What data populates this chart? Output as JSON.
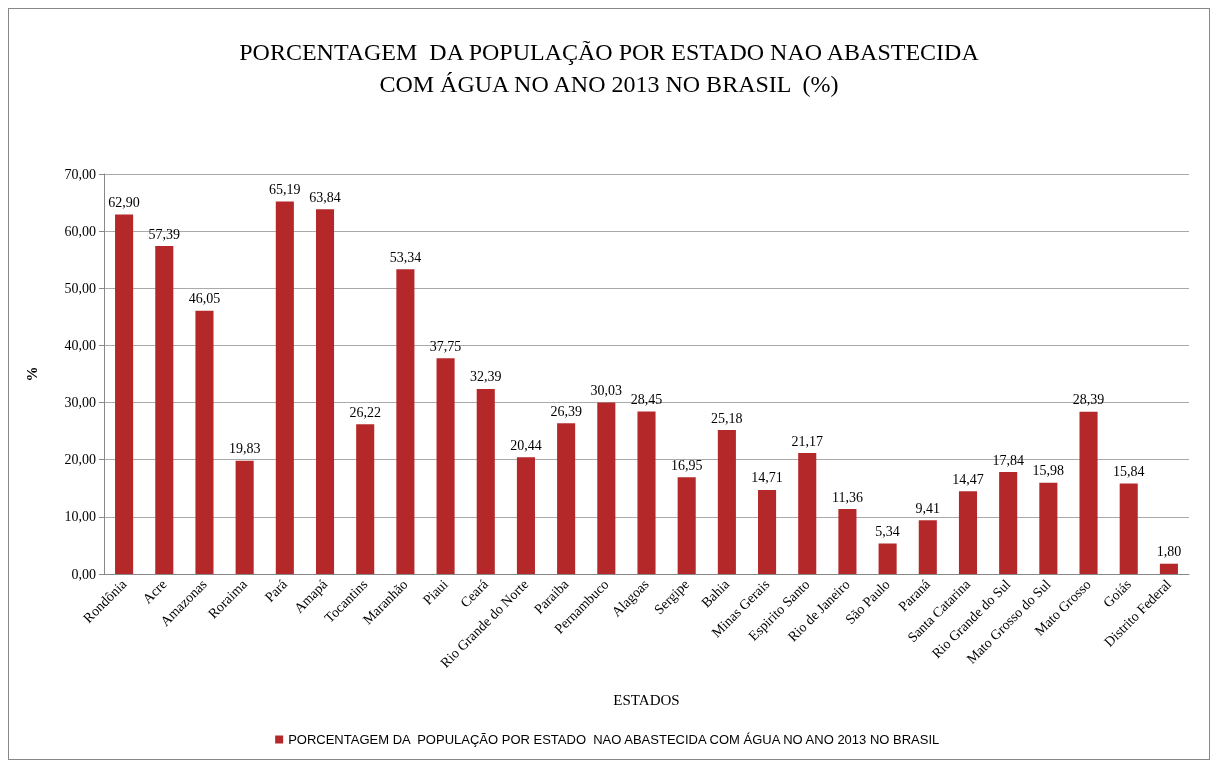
{
  "chart_data": {
    "type": "bar",
    "title": "PORCENTAGEM  DA POPULAÇÃO POR ESTADO NAO ABASTECIDA\nCOM ÁGUA NO ANO 2013 NO BRASIL  (%)",
    "xlabel": "ESTADOS",
    "ylabel": "%",
    "categories": [
      "Rondônia",
      "Acre",
      "Amazonas",
      "Roraima",
      "Pará",
      "Amapá",
      "Tocantins",
      "Maranhão",
      "Piaui",
      "Ceará",
      "Rio Grande do Norte",
      "Paraiba",
      "Pernambuco",
      "Alagoas",
      "Sergipe",
      "Bahia",
      "Minas Gerais",
      "Espirito Santo",
      "Rio de Janeiro",
      "São Paulo",
      "Paraná",
      "Santa Catarina",
      "Rio Grande do Sul",
      "Mato Grosso do Sul",
      "Mato Grosso",
      "Goiás",
      "Distrito Federal"
    ],
    "series": [
      {
        "name": "PORCENTAGEM DA  POPULAÇÃO POR ESTADO  NAO ABASTECIDA COM ÁGUA NO ANO 2013 NO BRASIL",
        "color": "#b5282a",
        "values": [
          62.9,
          57.39,
          46.05,
          19.83,
          65.19,
          63.84,
          26.22,
          53.34,
          37.75,
          32.39,
          20.44,
          26.39,
          30.03,
          28.45,
          16.95,
          25.18,
          14.71,
          21.17,
          11.36,
          5.34,
          9.41,
          14.47,
          17.84,
          15.98,
          28.39,
          15.84,
          1.8
        ],
        "value_labels": [
          "62,90",
          "57,39",
          "46,05",
          "19,83",
          "65,19",
          "63,84",
          "26,22",
          "53,34",
          "37,75",
          "32,39",
          "20,44",
          "26,39",
          "30,03",
          "28,45",
          "16,95",
          "25,18",
          "14,71",
          "21,17",
          "11,36",
          "5,34",
          "9,41",
          "14,47",
          "17,84",
          "15,98",
          "28,39",
          "15,84",
          "1,80"
        ]
      }
    ],
    "ylim": [
      0,
      70
    ],
    "yticks": [
      {
        "value": 0,
        "label": "0,00"
      },
      {
        "value": 10,
        "label": "10,00"
      },
      {
        "value": 20,
        "label": "20,00"
      },
      {
        "value": 30,
        "label": "30,00"
      },
      {
        "value": 40,
        "label": "40,00"
      },
      {
        "value": 50,
        "label": "50,00"
      },
      {
        "value": 60,
        "label": "60,00"
      },
      {
        "value": 70,
        "label": "70,00"
      }
    ],
    "grid": "y",
    "legend": "bottom"
  }
}
